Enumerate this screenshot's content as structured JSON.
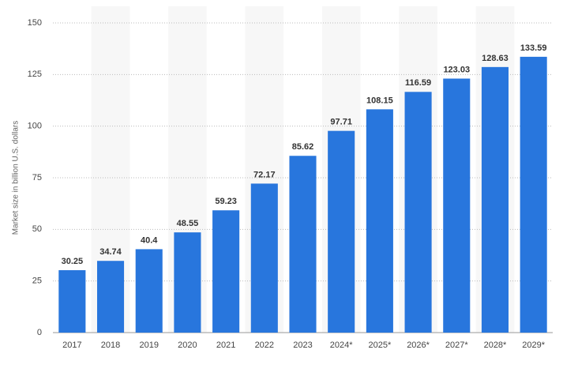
{
  "chart_data": {
    "type": "bar",
    "y_label": "Market size in billion U.S. dollars",
    "categories": [
      "2017",
      "2018",
      "2019",
      "2020",
      "2021",
      "2022",
      "2023",
      "2024*",
      "2025*",
      "2026*",
      "2027*",
      "2028*",
      "2029*"
    ],
    "values": [
      30.25,
      34.74,
      40.4,
      48.55,
      59.23,
      72.17,
      85.62,
      97.71,
      108.15,
      116.59,
      123.03,
      128.63,
      133.59
    ],
    "color": "#2876dd",
    "ylim": [
      0,
      150
    ],
    "yticks": [
      0,
      25,
      50,
      75,
      100,
      125,
      150
    ],
    "grid": true
  }
}
